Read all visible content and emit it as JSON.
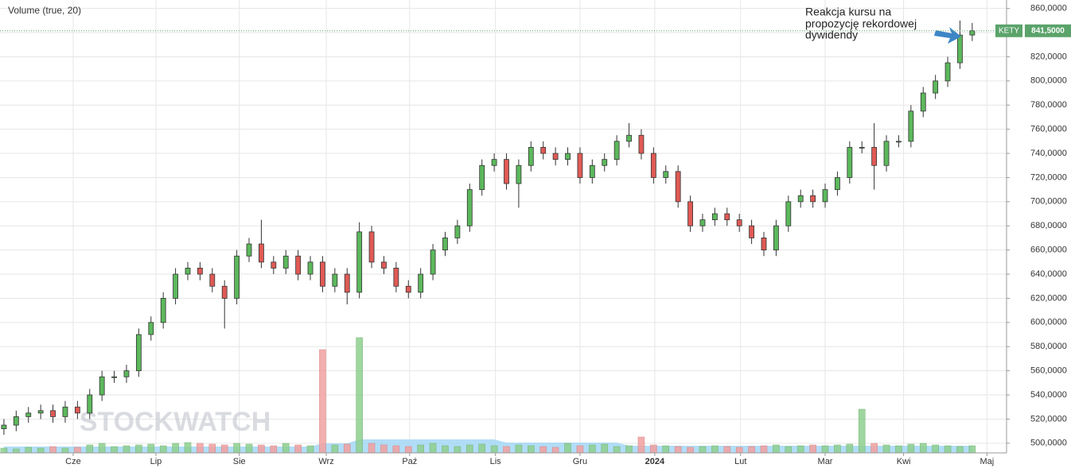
{
  "chart_data": {
    "type": "candlestick",
    "header": "Volume (true, 20)",
    "annotation": [
      "Reakcja kursu na",
      "propozycję rekordowej",
      "dywidendy"
    ],
    "watermark": "STOCKWATCH",
    "ticker": "KETY",
    "last_price": {
      "value": 841.5,
      "label": "841,5000"
    },
    "x": [
      0,
      1,
      2,
      3,
      4,
      5,
      6,
      7,
      8,
      9,
      10,
      11,
      12,
      13,
      14,
      15,
      16,
      17,
      18,
      19,
      20,
      21,
      22,
      23,
      24,
      25,
      26,
      27,
      28,
      29,
      30,
      31,
      32,
      33,
      34,
      35,
      36,
      37,
      38,
      39,
      40,
      41,
      42,
      43,
      44,
      45,
      46,
      47,
      48,
      49,
      50,
      51,
      52,
      53,
      54,
      55,
      56,
      57,
      58,
      59,
      60,
      61,
      62,
      63,
      64,
      65,
      66,
      67,
      68,
      69,
      70,
      71,
      72,
      73,
      74,
      75,
      76,
      77,
      78,
      79
    ],
    "open": [
      512,
      515,
      522,
      525,
      527,
      522,
      530,
      525,
      540,
      555,
      555,
      560,
      590,
      600,
      620,
      640,
      645,
      640,
      630,
      620,
      655,
      665,
      650,
      645,
      655,
      640,
      650,
      630,
      640,
      625,
      675,
      650,
      645,
      630,
      625,
      640,
      660,
      670,
      680,
      710,
      730,
      735,
      715,
      730,
      745,
      740,
      735,
      740,
      720,
      730,
      735,
      750,
      755,
      740,
      720,
      725,
      700,
      680,
      685,
      690,
      685,
      680,
      670,
      660,
      680,
      700,
      705,
      700,
      710,
      720,
      745,
      745,
      730,
      750,
      750,
      775,
      790,
      800,
      815,
      838
    ],
    "high": [
      520,
      527,
      530,
      532,
      532,
      535,
      535,
      545,
      560,
      560,
      565,
      595,
      605,
      625,
      645,
      650,
      650,
      645,
      635,
      660,
      670,
      685,
      655,
      660,
      660,
      655,
      655,
      645,
      645,
      683,
      680,
      655,
      650,
      635,
      645,
      665,
      675,
      685,
      715,
      735,
      740,
      740,
      735,
      750,
      750,
      745,
      745,
      745,
      735,
      740,
      755,
      765,
      760,
      745,
      730,
      730,
      705,
      690,
      695,
      695,
      690,
      685,
      675,
      685,
      705,
      710,
      710,
      715,
      725,
      750,
      750,
      765,
      755,
      755,
      780,
      795,
      805,
      820,
      850,
      848
    ],
    "low": [
      507,
      510,
      517,
      520,
      517,
      517,
      520,
      520,
      535,
      550,
      550,
      555,
      585,
      595,
      615,
      635,
      635,
      625,
      595,
      615,
      650,
      645,
      640,
      640,
      635,
      635,
      625,
      625,
      615,
      620,
      645,
      640,
      625,
      620,
      620,
      635,
      655,
      665,
      675,
      705,
      725,
      710,
      695,
      725,
      735,
      730,
      730,
      715,
      715,
      725,
      730,
      745,
      735,
      715,
      715,
      695,
      675,
      675,
      680,
      680,
      675,
      665,
      655,
      655,
      675,
      695,
      695,
      695,
      705,
      715,
      740,
      710,
      725,
      745,
      745,
      770,
      785,
      795,
      810,
      833
    ],
    "close": [
      515,
      522,
      525,
      527,
      522,
      530,
      525,
      540,
      555,
      555,
      560,
      590,
      600,
      620,
      640,
      645,
      640,
      630,
      620,
      655,
      665,
      650,
      645,
      655,
      640,
      650,
      630,
      640,
      625,
      675,
      650,
      645,
      630,
      625,
      640,
      660,
      670,
      680,
      710,
      730,
      735,
      715,
      730,
      745,
      740,
      735,
      740,
      720,
      730,
      735,
      750,
      755,
      740,
      720,
      725,
      700,
      680,
      685,
      690,
      685,
      680,
      670,
      660,
      680,
      700,
      705,
      700,
      710,
      720,
      745,
      745,
      730,
      750,
      750,
      775,
      790,
      800,
      815,
      838,
      841.5
    ],
    "volume": [
      6,
      5,
      7,
      6,
      8,
      6,
      7,
      10,
      12,
      8,
      9,
      10,
      11,
      9,
      12,
      13,
      12,
      11,
      10,
      12,
      11,
      10,
      9,
      12,
      10,
      9,
      130,
      10,
      11,
      145,
      12,
      10,
      9,
      8,
      10,
      12,
      9,
      8,
      10,
      11,
      9,
      8,
      10,
      9,
      8,
      7,
      12,
      9,
      10,
      11,
      8,
      9,
      20,
      10,
      9,
      8,
      7,
      8,
      9,
      8,
      7,
      8,
      9,
      10,
      8,
      9,
      10,
      9,
      10,
      11,
      55,
      12,
      10,
      9,
      11,
      12,
      10,
      9,
      8,
      9
    ],
    "volume_ma": [
      8,
      8,
      8,
      8,
      8,
      8,
      8,
      8,
      8,
      8,
      8,
      8,
      8,
      8,
      8,
      8,
      8,
      8,
      8,
      8,
      8,
      8,
      8,
      8,
      8,
      8,
      12,
      12,
      12,
      17,
      17,
      17,
      17,
      17,
      17,
      17,
      17,
      17,
      17,
      17,
      17,
      13,
      13,
      13,
      13,
      13,
      13,
      13,
      13,
      13,
      13,
      9,
      9,
      9,
      9,
      9,
      9,
      9,
      9,
      9,
      9,
      9,
      9,
      9,
      9,
      9,
      9,
      9,
      9,
      9,
      9,
      9,
      9,
      9,
      9,
      9,
      9,
      9,
      9,
      9
    ],
    "volume_lim": [
      0,
      150
    ],
    "colors": {
      "up": "#5cb85c",
      "down": "#e05a55",
      "volume_up": "#8fd08f",
      "volume_down": "#f2a0a0",
      "volume_ma": "#9fd4f5",
      "last": "#5aa36a"
    },
    "xlim": [
      -0.32,
      81.8
    ],
    "xticks": [
      {
        "value": 5.65,
        "label": "Cze"
      },
      {
        "value": 12.4,
        "label": "Lip"
      },
      {
        "value": 19.2,
        "label": "Sie"
      },
      {
        "value": 26.3,
        "label": "Wrz"
      },
      {
        "value": 33.1,
        "label": "Paź"
      },
      {
        "value": 40.1,
        "label": "Lis"
      },
      {
        "value": 47,
        "label": "Gru"
      },
      {
        "value": 53.1,
        "label": "2024"
      },
      {
        "value": 60.1,
        "label": "Lut"
      },
      {
        "value": 67,
        "label": "Mar"
      },
      {
        "value": 73.4,
        "label": "Kwi"
      },
      {
        "value": 80.2,
        "label": "Maj"
      }
    ],
    "ylim": [
      492,
      867
    ],
    "yticks": [
      {
        "value": 500,
        "label": "500,0000"
      },
      {
        "value": 520,
        "label": "520,0000"
      },
      {
        "value": 540,
        "label": "540,0000"
      },
      {
        "value": 560,
        "label": "560,0000"
      },
      {
        "value": 580,
        "label": "580,0000"
      },
      {
        "value": 600,
        "label": "600,0000"
      },
      {
        "value": 620,
        "label": "620,0000"
      },
      {
        "value": 640,
        "label": "640,0000"
      },
      {
        "value": 660,
        "label": "660,0000"
      },
      {
        "value": 680,
        "label": "680,0000"
      },
      {
        "value": 700,
        "label": "700,0000"
      },
      {
        "value": 720,
        "label": "720,0000"
      },
      {
        "value": 740,
        "label": "740,0000"
      },
      {
        "value": 760,
        "label": "760,0000"
      },
      {
        "value": 780,
        "label": "780,0000"
      },
      {
        "value": 800,
        "label": "800,0000"
      },
      {
        "value": 820,
        "label": "820,0000"
      },
      {
        "value": 840,
        "label": "840,0000"
      },
      {
        "value": 860,
        "label": "860,0000"
      }
    ],
    "grid": true
  }
}
